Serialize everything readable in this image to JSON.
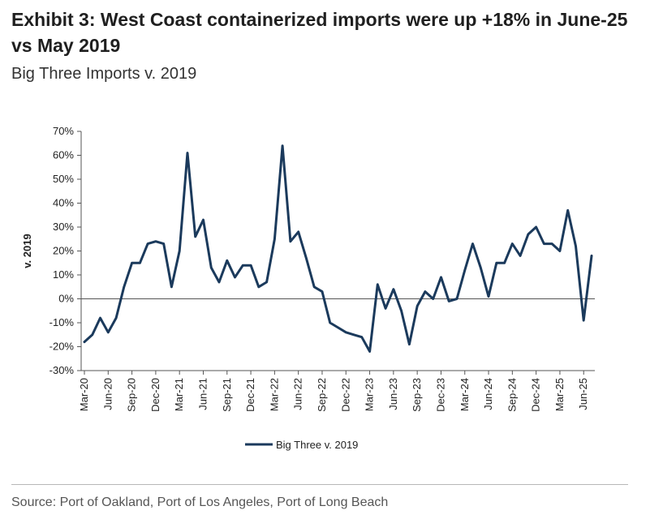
{
  "header": {
    "title": "Exhibit 3: West Coast containerized imports were up +18% in June-25 vs May 2019",
    "subtitle": "Big Three Imports v. 2019"
  },
  "footer": {
    "source": "Source: Port of Oakland, Port of Los Angeles, Port of Long Beach"
  },
  "chart_data": {
    "type": "line",
    "ylabel": "v. 2019",
    "ylim": [
      -30,
      70
    ],
    "yticks": [
      70,
      60,
      50,
      40,
      30,
      20,
      10,
      0,
      -10,
      -20,
      -30
    ],
    "ytick_labels": [
      "70%",
      "60%",
      "50%",
      "40%",
      "30%",
      "20%",
      "10%",
      "0%",
      "-10%",
      "-20%",
      "-30%"
    ],
    "xtick_labels": [
      "Mar-20",
      "Jun-20",
      "Sep-20",
      "Dec-20",
      "Mar-21",
      "Jun-21",
      "Sep-21",
      "Dec-21",
      "Mar-22",
      "Jun-22",
      "Sep-22",
      "Dec-22",
      "Mar-23",
      "Jun-23",
      "Sep-23",
      "Dec-23",
      "Mar-24",
      "Jun-24",
      "Sep-24",
      "Dec-24",
      "Mar-25",
      "Jun-25"
    ],
    "x_start": "Mar-20",
    "x_end": "Jun-25",
    "grid": false,
    "zero_line": true,
    "legend_position": "bottom",
    "color": "#1b3a5c",
    "series": [
      {
        "name": "Big Three v. 2019",
        "values": [
          -18,
          -15,
          -8,
          -14,
          -8,
          5,
          15,
          15,
          23,
          24,
          23,
          5,
          20,
          61,
          26,
          33,
          13,
          7,
          16,
          9,
          14,
          14,
          5,
          7,
          25,
          64,
          24,
          28,
          17,
          5,
          3,
          -10,
          -12,
          -14,
          -15,
          -16,
          -22,
          6,
          -4,
          4,
          -5,
          -19,
          -3,
          3,
          0,
          9,
          -1,
          0,
          12,
          23,
          13,
          1,
          15,
          15,
          23,
          18,
          27,
          30,
          23,
          23,
          20,
          37,
          22,
          -9,
          18
        ]
      }
    ]
  }
}
